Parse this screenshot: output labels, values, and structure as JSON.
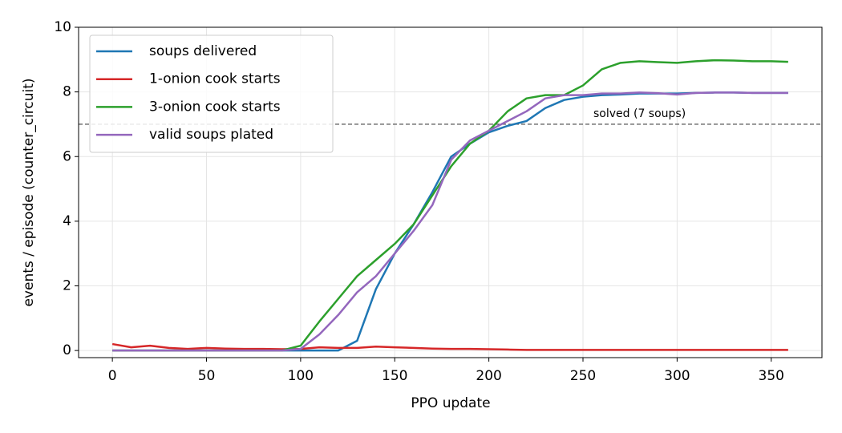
{
  "chart_data": {
    "type": "line",
    "x_label": "PPO update",
    "y_label": "events / episode (counter_circuit)",
    "x": [
      0,
      10,
      20,
      30,
      40,
      50,
      60,
      70,
      80,
      90,
      100,
      110,
      120,
      130,
      140,
      150,
      160,
      170,
      180,
      190,
      200,
      210,
      220,
      230,
      240,
      250,
      260,
      270,
      280,
      290,
      300,
      310,
      320,
      330,
      340,
      350,
      359
    ],
    "series": [
      {
        "name": "soups delivered",
        "color": "#1f77b4",
        "values": [
          0,
          0,
          0,
          0,
          0,
          0,
          0,
          0,
          0,
          0,
          0,
          0,
          0,
          0.3,
          1.9,
          3.0,
          3.9,
          4.9,
          6.0,
          6.4,
          6.75,
          6.95,
          7.1,
          7.5,
          7.75,
          7.85,
          7.9,
          7.92,
          7.95,
          7.95,
          7.95,
          7.97,
          7.98,
          7.98,
          7.97,
          7.97,
          7.97
        ]
      },
      {
        "name": "1-onion cook starts",
        "color": "#d62728",
        "values": [
          0.2,
          0.1,
          0.15,
          0.08,
          0.05,
          0.08,
          0.06,
          0.05,
          0.05,
          0.04,
          0.05,
          0.1,
          0.08,
          0.08,
          0.12,
          0.1,
          0.08,
          0.06,
          0.05,
          0.05,
          0.04,
          0.03,
          0.02,
          0.02,
          0.02,
          0.02,
          0.02,
          0.02,
          0.02,
          0.02,
          0.02,
          0.02,
          0.02,
          0.02,
          0.02,
          0.02,
          0.02
        ]
      },
      {
        "name": "3-onion cook starts",
        "color": "#2ca02c",
        "values": [
          0,
          0,
          0,
          0,
          0,
          0,
          0,
          0,
          0,
          0,
          0.15,
          0.9,
          1.6,
          2.3,
          2.8,
          3.3,
          3.9,
          4.8,
          5.7,
          6.4,
          6.8,
          7.4,
          7.8,
          7.9,
          7.9,
          8.2,
          8.7,
          8.9,
          8.95,
          8.92,
          8.9,
          8.95,
          8.98,
          8.97,
          8.95,
          8.95,
          8.93
        ]
      },
      {
        "name": "valid soups plated",
        "color": "#9467bd",
        "values": [
          0,
          0,
          0,
          0,
          0,
          0,
          0,
          0,
          0,
          0,
          0.05,
          0.5,
          1.1,
          1.8,
          2.3,
          3.0,
          3.7,
          4.5,
          5.9,
          6.5,
          6.8,
          7.1,
          7.4,
          7.8,
          7.9,
          7.9,
          7.95,
          7.95,
          7.98,
          7.96,
          7.92,
          7.97,
          7.98,
          7.98,
          7.97,
          7.97,
          7.97
        ]
      }
    ],
    "hline": {
      "value": 7,
      "label": "solved (7 soups)"
    },
    "xlim": [
      -17.95,
      376.95
    ],
    "xticks": [
      0,
      50,
      100,
      150,
      200,
      250,
      300,
      350
    ],
    "ylim": [
      -0.22,
      10
    ],
    "yticks": [
      0,
      2,
      4,
      6,
      8,
      10
    ],
    "grid": true,
    "legend": "upper left"
  }
}
